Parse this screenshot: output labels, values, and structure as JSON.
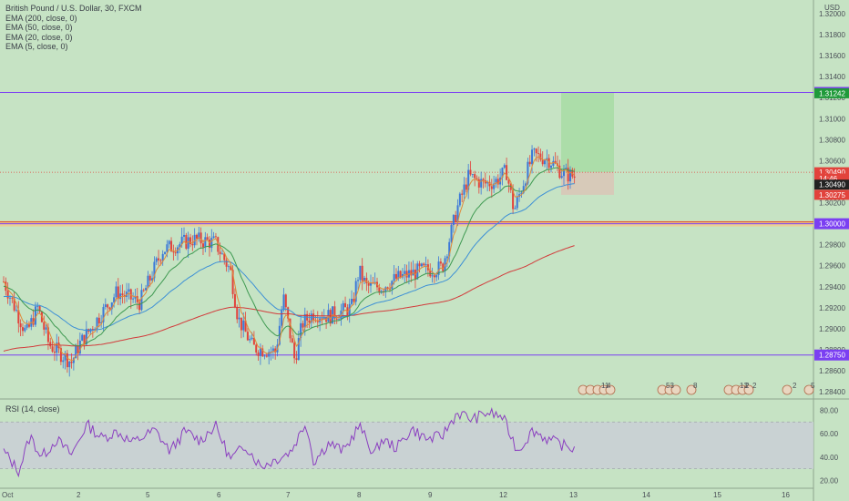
{
  "header": {
    "title": "British Pound / U.S. Dollar, 30, FXCM",
    "indicators": [
      "EMA (200, close, 0)",
      "EMA (50, close, 0)",
      "EMA (20, close, 0)",
      "EMA (5, close, 0)"
    ]
  },
  "rsi": {
    "label": "RSI (14, close)"
  },
  "colors": {
    "background": "#c6e3c4",
    "candle_up": "#3b78d8",
    "candle_down": "#e2433c",
    "ema200": "#d23b3b",
    "ema50": "#3c8fd6",
    "ema20": "#3f9a52",
    "ema5": "#e08a3a",
    "level_line": "#7b3ff2",
    "rsi_line": "#8b3fc0",
    "rsi_band": "#c9cfd6",
    "target_zone": "#a8dca6",
    "stop_zone": "#d8c7b8"
  },
  "chart_data": [
    {
      "type": "candlestick",
      "title": "British Pound / U.S. Dollar, 30, FXCM",
      "currency": "USD",
      "x_ticks": [
        "Oct",
        "2",
        "5",
        "6",
        "7",
        "8",
        "9",
        "12",
        "13",
        "14",
        "15",
        "16"
      ],
      "y_ticks": [
        "1.32000",
        "1.31800",
        "1.31600",
        "1.31400",
        "1.31200",
        "1.31000",
        "1.30800",
        "1.30600",
        "1.30400",
        "1.30200",
        "1.30000",
        "1.29800",
        "1.29600",
        "1.29400",
        "1.29200",
        "1.29000",
        "1.28800",
        "1.28600",
        "1.28400"
      ],
      "ylim": [
        1.2834,
        1.3213
      ],
      "price_anchors": [
        [
          0,
          1.2945
        ],
        [
          0.03,
          1.2895
        ],
        [
          0.045,
          1.292
        ],
        [
          0.06,
          1.2885
        ],
        [
          0.09,
          1.2868
        ],
        [
          0.1,
          1.2885
        ],
        [
          0.12,
          1.2905
        ],
        [
          0.15,
          1.2935
        ],
        [
          0.18,
          1.2925
        ],
        [
          0.21,
          1.2975
        ],
        [
          0.25,
          1.2985
        ],
        [
          0.28,
          1.2982
        ],
        [
          0.3,
          1.2955
        ],
        [
          0.31,
          1.291
        ],
        [
          0.33,
          1.2882
        ],
        [
          0.36,
          1.2878
        ],
        [
          0.37,
          1.293
        ],
        [
          0.385,
          1.287
        ],
        [
          0.395,
          1.2905
        ],
        [
          0.41,
          1.2915
        ],
        [
          0.43,
          1.2912
        ],
        [
          0.46,
          1.292
        ],
        [
          0.47,
          1.2955
        ],
        [
          0.48,
          1.294
        ],
        [
          0.5,
          1.294
        ],
        [
          0.52,
          1.2948
        ],
        [
          0.55,
          1.2955
        ],
        [
          0.58,
          1.2958
        ],
        [
          0.6,
          1.3015
        ],
        [
          0.615,
          1.3045
        ],
        [
          0.635,
          1.3038
        ],
        [
          0.65,
          1.304
        ],
        [
          0.665,
          1.305
        ],
        [
          0.675,
          1.3012
        ],
        [
          0.69,
          1.3045
        ],
        [
          0.7,
          1.3065
        ],
        [
          0.72,
          1.3062
        ],
        [
          0.74,
          1.3048
        ],
        [
          0.755,
          1.3045
        ]
      ],
      "levels": [
        {
          "price": 1.3125,
          "label": "1.31250"
        },
        {
          "price": 1.3,
          "label": "1.30000"
        },
        {
          "price": 1.2875,
          "label": "1.28750"
        }
      ],
      "price_tags": [
        {
          "price": 1.31242,
          "label": "1.31242",
          "color": "#1f9a3a"
        },
        {
          "price": 1.3049,
          "label": "1.30490",
          "color": "#e2433c"
        },
        {
          "price": 1.3043,
          "label": "14:46",
          "color": "#e2433c"
        },
        {
          "price": 1.30372,
          "label": "1.30490",
          "color": "#222222"
        },
        {
          "price": 1.30275,
          "label": "1.30275",
          "color": "#e2433c"
        }
      ],
      "position": {
        "entry": 1.3049,
        "target": 1.3125,
        "stop": 1.30275
      },
      "events_labels": [
        "11",
        "4",
        "53",
        "8",
        "13",
        "2",
        "2",
        "2",
        "5"
      ]
    },
    {
      "type": "line",
      "title": "RSI (14, close)",
      "y_ticks": [
        "80.00",
        "60.00",
        "40.00",
        "20.00"
      ],
      "ylim": [
        15,
        88
      ],
      "band": [
        30,
        70
      ],
      "rsi_anchors": [
        [
          0,
          45
        ],
        [
          0.02,
          28
        ],
        [
          0.035,
          58
        ],
        [
          0.05,
          40
        ],
        [
          0.07,
          55
        ],
        [
          0.09,
          42
        ],
        [
          0.11,
          68
        ],
        [
          0.13,
          56
        ],
        [
          0.15,
          62
        ],
        [
          0.17,
          52
        ],
        [
          0.2,
          63
        ],
        [
          0.22,
          45
        ],
        [
          0.24,
          62
        ],
        [
          0.26,
          54
        ],
        [
          0.28,
          67
        ],
        [
          0.3,
          38
        ],
        [
          0.32,
          50
        ],
        [
          0.34,
          32
        ],
        [
          0.36,
          38
        ],
        [
          0.38,
          45
        ],
        [
          0.4,
          70
        ],
        [
          0.41,
          36
        ],
        [
          0.43,
          52
        ],
        [
          0.45,
          45
        ],
        [
          0.47,
          67
        ],
        [
          0.49,
          42
        ],
        [
          0.5,
          55
        ],
        [
          0.52,
          48
        ],
        [
          0.54,
          64
        ],
        [
          0.56,
          55
        ],
        [
          0.58,
          58
        ],
        [
          0.6,
          78
        ],
        [
          0.62,
          72
        ],
        [
          0.64,
          78
        ],
        [
          0.66,
          74
        ],
        [
          0.68,
          45
        ],
        [
          0.7,
          63
        ],
        [
          0.72,
          55
        ],
        [
          0.74,
          50
        ],
        [
          0.755,
          47
        ]
      ]
    }
  ]
}
